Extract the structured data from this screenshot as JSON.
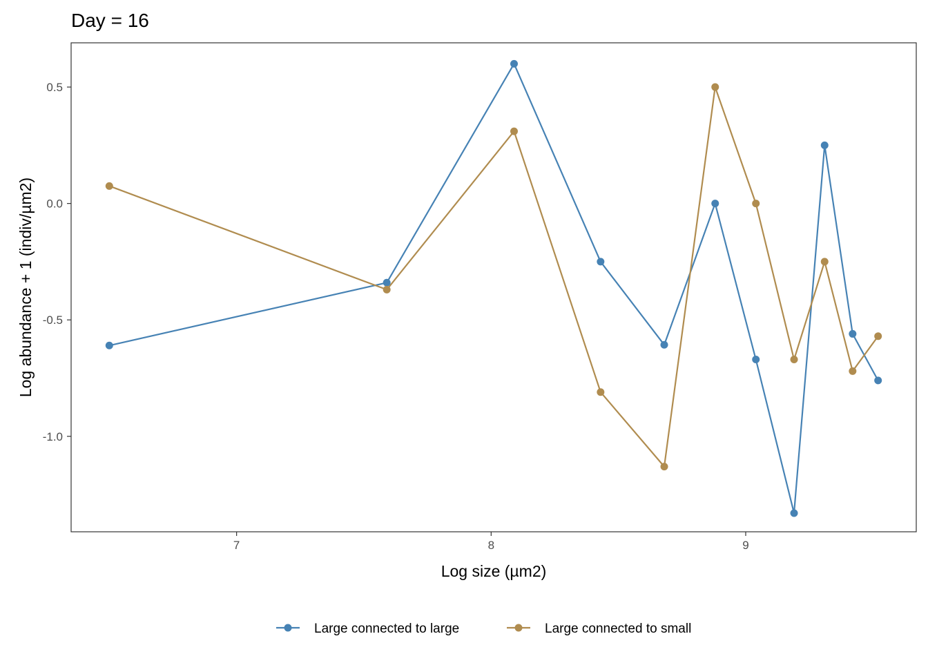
{
  "chart_data": {
    "type": "line",
    "title": "Day = 16",
    "xlabel": "Log size (µm2)",
    "ylabel": "Log abundance + 1 (indiv/µm2)",
    "xlim": [
      6.35,
      9.67
    ],
    "ylim": [
      -1.41,
      0.69
    ],
    "xticks": [
      7,
      8,
      9
    ],
    "xtick_labels": [
      "7",
      "8",
      "9"
    ],
    "yticks": [
      0.5,
      0.0,
      -0.5,
      -1.0
    ],
    "ytick_labels": [
      "0.5",
      "0.0",
      "-0.5",
      "-1.0"
    ],
    "grid": false,
    "legend_position": "bottom",
    "series": [
      {
        "name": "Large connected to large",
        "color": "#4682b4",
        "x": [
          6.5,
          7.59,
          8.09,
          8.43,
          8.68,
          8.88,
          9.04,
          9.19,
          9.31,
          9.42,
          9.52
        ],
        "y": [
          -0.61,
          -0.34,
          0.6,
          -0.25,
          -0.607,
          0.0,
          -0.67,
          -1.33,
          0.25,
          -0.56,
          -0.76
        ]
      },
      {
        "name": "Large connected to small",
        "color": "#b08c4f",
        "x": [
          6.5,
          7.59,
          8.09,
          8.43,
          8.68,
          8.88,
          9.04,
          9.19,
          9.31,
          9.42,
          9.52
        ],
        "y": [
          0.075,
          -0.37,
          0.31,
          -0.81,
          -1.13,
          0.5,
          0.0,
          -0.67,
          -0.25,
          -0.72,
          -0.57
        ]
      }
    ]
  }
}
